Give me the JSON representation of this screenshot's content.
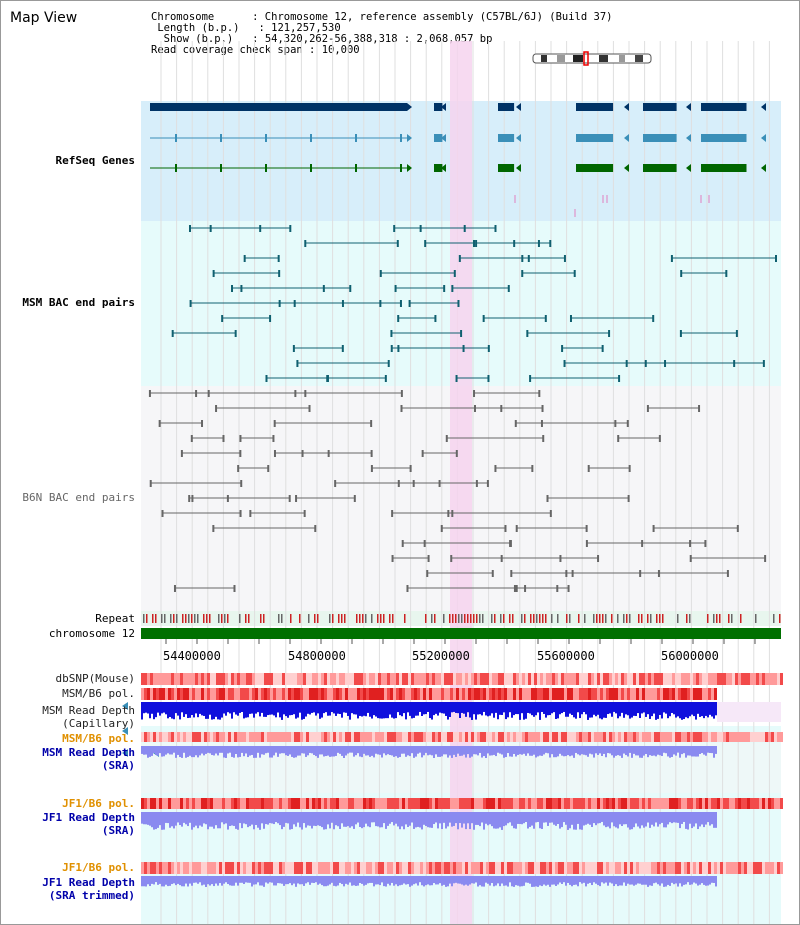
{
  "title": "Map View",
  "info": {
    "chromosome_label": "Chromosome",
    "chromosome_value": "Chromosome 12, reference assembly (C57BL/6J) (Build 37)",
    "length_label": "Length (b.p.)",
    "length_value": "121,257,530",
    "show_label": "Show (b.p.)",
    "show_value": "54,320,262-56,388,318 : 2,068,057 bp",
    "span_label": "Read coverage check span",
    "span_value": "10,000"
  },
  "tracks": {
    "refseq": "RefSeq Genes",
    "msm_bac": "MSM BAC end pairs",
    "b6n_bac": "B6N BAC end pairs",
    "repeat": "Repeat",
    "chromosome": "chromosome 12",
    "dbsnp": "dbSNP(Mouse)",
    "msm_b6_pol": "MSM/B6 pol.",
    "msm_depth_cap_1": "MSM Read Depth",
    "msm_depth_cap_2": "(Capillary)",
    "msm_b6_pol_sra": "MSM/B6 pol.",
    "msm_depth_sra_1": "MSM Read Depth",
    "msm_depth_sra_2": "(SRA)",
    "jf1_b6_pol": "JF1/B6 pol.",
    "jf1_depth_1": "JF1 Read Depth",
    "jf1_depth_2": "(SRA)",
    "jf1_b6_pol_2": "JF1/B6 pol.",
    "jf1_trim_1": "JF1 Read Depth",
    "jf1_trim_2": "(SRA trimmed)"
  },
  "ruler": [
    "54400000",
    "54800000",
    "55200000",
    "55600000",
    "56000000"
  ],
  "colors": {
    "refseq_bg": "#d7eefa",
    "msm_bg": "#e6fbfb",
    "b6n_bg": "#f6f6f8",
    "lightband_bg": "#eef8f8",
    "highlight": "#f6d4ee",
    "label_blue": "#0000aa",
    "label_teal": "#006677",
    "label_orange": "#e09000",
    "chromosome_green": "#007000",
    "refseq_navy": "#003366",
    "refseq_blue": "#3a8fb8",
    "refseq_green": "#006600",
    "msm_teal": "#106070",
    "depth_blue": "#1010dd",
    "depth_light": "#8a8af0"
  }
}
